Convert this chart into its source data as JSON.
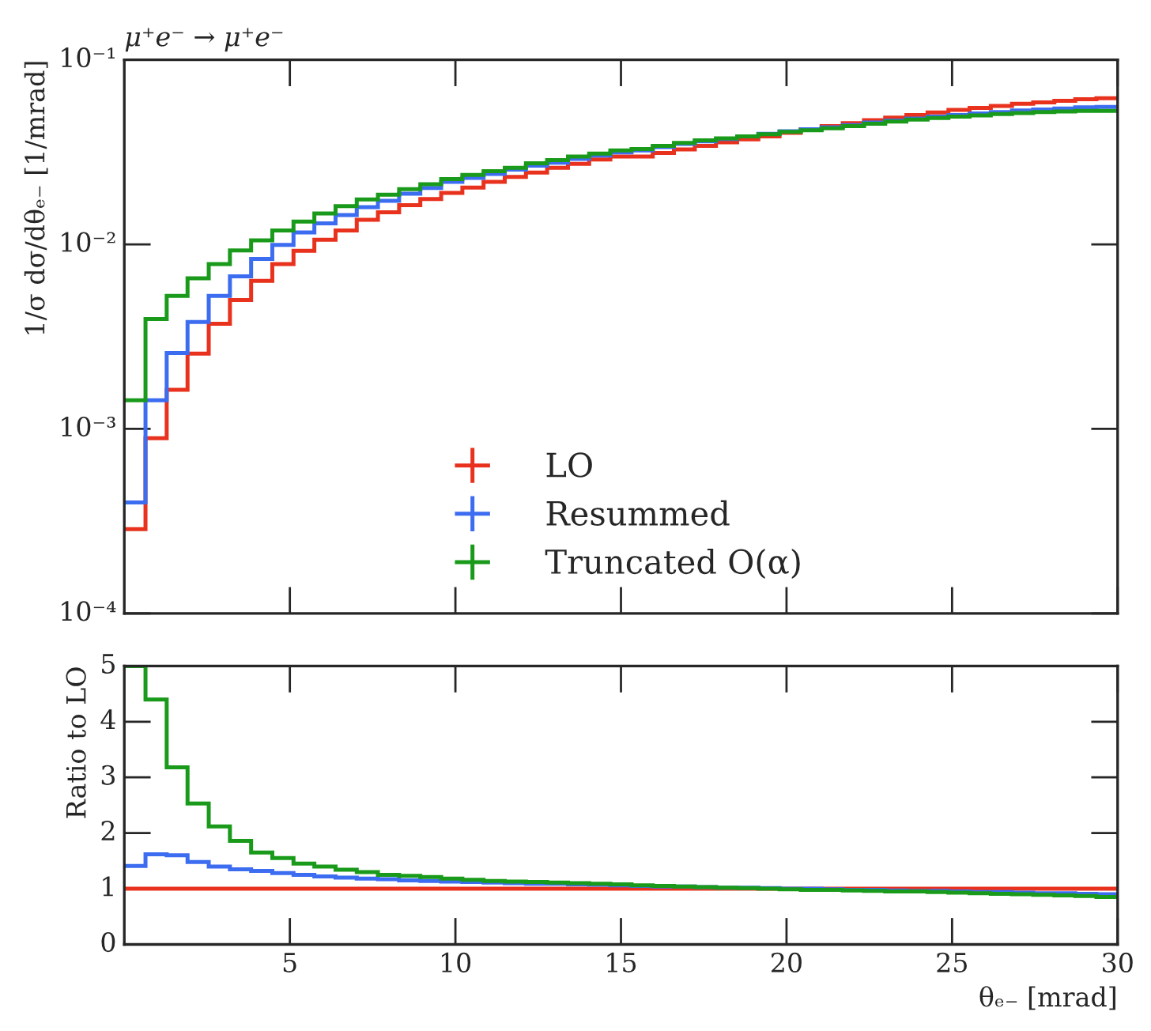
{
  "chart_data": [
    {
      "type": "histogram",
      "title": "μ⁺e⁻ → μ⁺e⁻",
      "ylabel": "1/σ dσ/dθₑ₋ [1/mrad]",
      "log": "y",
      "legend": "bottom",
      "tick_labels": "y",
      "bins": [
        0,
        0.64,
        1.28,
        1.91,
        2.55,
        3.19,
        3.83,
        4.47,
        5.11,
        5.74,
        6.38,
        7.02,
        7.66,
        8.3,
        8.94,
        9.57,
        10.21,
        10.85,
        11.49,
        12.13,
        12.77,
        13.4,
        14.04,
        14.68,
        15.32,
        15.96,
        16.6,
        17.23,
        17.87,
        18.51,
        19.15,
        19.79,
        20.43,
        21.06,
        21.7,
        22.34,
        22.98,
        23.62,
        24.26,
        24.89,
        25.53,
        26.17,
        26.81,
        27.45,
        28.09,
        28.72,
        29.36,
        30
      ],
      "xlim": [
        0,
        30
      ],
      "xticks": [
        5,
        10,
        15,
        20,
        25,
        30
      ],
      "ylim": [
        0.0001,
        0.1
      ],
      "yticks": [
        {
          "value": 0.0001,
          "label": "10⁻⁴"
        },
        {
          "value": 0.001,
          "label": "10⁻³"
        },
        {
          "value": 0.01,
          "label": "10⁻²"
        },
        {
          "value": 0.1,
          "label": "10⁻¹"
        }
      ],
      "series": [
        {
          "name": "LO",
          "color": "#e8321e",
          "values": [
            0.000286,
            0.00089,
            0.00163,
            0.00256,
            0.00371,
            0.00499,
            0.00634,
            0.00782,
            0.00922,
            0.0106,
            0.0119,
            0.0136,
            0.0149,
            0.0163,
            0.0176,
            0.019,
            0.0203,
            0.0218,
            0.0232,
            0.0245,
            0.026,
            0.0273,
            0.0288,
            0.0299,
            0.02987,
            0.03124,
            0.03266,
            0.03413,
            0.03568,
            0.03706,
            0.03848,
            0.04022,
            0.04205,
            0.04368,
            0.04537,
            0.04713,
            0.04864,
            0.0502,
            0.05182,
            0.05349,
            0.05486,
            0.05627,
            0.05771,
            0.05881,
            0.05994,
            0.06109,
            0.06187
          ]
        },
        {
          "name": "Resummed",
          "color": "#3c6cf0",
          "values": [
            0.000399,
            0.00143,
            0.00258,
            0.0038,
            0.00525,
            0.00671,
            0.00834,
            0.00993,
            0.0116,
            0.013,
            0.0144,
            0.0159,
            0.0172,
            0.0188,
            0.0202,
            0.0218,
            0.0229,
            0.0241,
            0.0254,
            0.0267,
            0.0277,
            0.029,
            0.0303,
            0.0315,
            0.03225,
            0.0337,
            0.03499,
            0.03612,
            0.03729,
            0.03848,
            0.03972,
            0.041,
            0.04205,
            0.04313,
            0.04424,
            0.04566,
            0.04682,
            0.04802,
            0.04927,
            0.0502,
            0.05117,
            0.05215,
            0.05315,
            0.05383,
            0.05451,
            0.05521,
            0.05556
          ]
        },
        {
          "name": "Truncated O(α)",
          "color": "#1a9a1a",
          "values": [
            0.00143,
            0.00394,
            0.00525,
            0.00655,
            0.00782,
            0.00927,
            0.0105,
            0.0119,
            0.0133,
            0.0147,
            0.0161,
            0.0175,
            0.0186,
            0.0199,
            0.0212,
            0.0226,
            0.0238,
            0.0249,
            0.026,
            0.0275,
            0.0286,
            0.0299,
            0.031,
            0.0323,
            0.03287,
            0.03413,
            0.03545,
            0.0366,
            0.03754,
            0.03848,
            0.03947,
            0.04074,
            0.04152,
            0.04258,
            0.04368,
            0.04508,
            0.04624,
            0.04743,
            0.04834,
            0.04927,
            0.04989,
            0.05085,
            0.05149,
            0.05215,
            0.05248,
            0.05282,
            0.05282
          ]
        }
      ]
    },
    {
      "type": "histogram",
      "ylabel": "Ratio to LO",
      "xlabel": "θₑ₋ [mrad]",
      "bins": [
        0,
        0.64,
        1.28,
        1.91,
        2.55,
        3.19,
        3.83,
        4.47,
        5.11,
        5.74,
        6.38,
        7.02,
        7.66,
        8.3,
        8.94,
        9.57,
        10.21,
        10.85,
        11.49,
        12.13,
        12.77,
        13.4,
        14.04,
        14.68,
        15.32,
        15.96,
        16.6,
        17.23,
        17.87,
        18.51,
        19.15,
        19.79,
        20.43,
        21.06,
        21.7,
        22.34,
        22.98,
        23.62,
        24.26,
        24.89,
        25.53,
        26.17,
        26.81,
        27.45,
        28.09,
        28.72,
        29.36,
        30
      ],
      "xlim": [
        0,
        30
      ],
      "xticks": [
        5,
        10,
        15,
        20,
        25,
        30
      ],
      "ylim": [
        0,
        5
      ],
      "yticks": [
        0,
        1,
        2,
        3,
        4,
        5
      ],
      "series": [
        {
          "color": "#e8321e",
          "values": [
            1,
            1,
            1,
            1,
            1,
            1,
            1,
            1,
            1,
            1,
            1,
            1,
            1,
            1,
            1,
            1,
            1,
            1,
            1,
            1,
            1,
            1,
            1,
            1,
            1,
            1,
            1,
            1,
            1,
            1,
            1,
            1,
            1,
            1,
            1,
            1,
            1,
            1,
            1,
            1,
            1,
            1,
            1,
            1,
            1,
            1,
            1
          ]
        },
        {
          "color": "#3c6cf0",
          "values": [
            1.41,
            1.62,
            1.6,
            1.48,
            1.4,
            1.35,
            1.32,
            1.28,
            1.25,
            1.22,
            1.2,
            1.18,
            1.17,
            1.15,
            1.14,
            1.13,
            1.12,
            1.11,
            1.1,
            1.09,
            1.09,
            1.08,
            1.07,
            1.06,
            1.05,
            1.04,
            1.04,
            1.03,
            1.02,
            1.02,
            1.01,
            1.0,
            1.0,
            0.99,
            0.98,
            0.98,
            0.97,
            0.96,
            0.96,
            0.95,
            0.94,
            0.94,
            0.93,
            0.92,
            0.92,
            0.91,
            0.9
          ]
        },
        {
          "color": "#1a9a1a",
          "values": [
            5.0,
            4.4,
            3.18,
            2.53,
            2.12,
            1.86,
            1.65,
            1.55,
            1.45,
            1.4,
            1.34,
            1.3,
            1.25,
            1.23,
            1.21,
            1.18,
            1.16,
            1.14,
            1.13,
            1.12,
            1.11,
            1.1,
            1.09,
            1.08,
            1.06,
            1.05,
            1.04,
            1.03,
            1.02,
            1.01,
            1.0,
            0.99,
            0.98,
            0.98,
            0.97,
            0.96,
            0.95,
            0.95,
            0.94,
            0.93,
            0.92,
            0.91,
            0.9,
            0.89,
            0.88,
            0.87,
            0.85
          ]
        }
      ]
    }
  ]
}
